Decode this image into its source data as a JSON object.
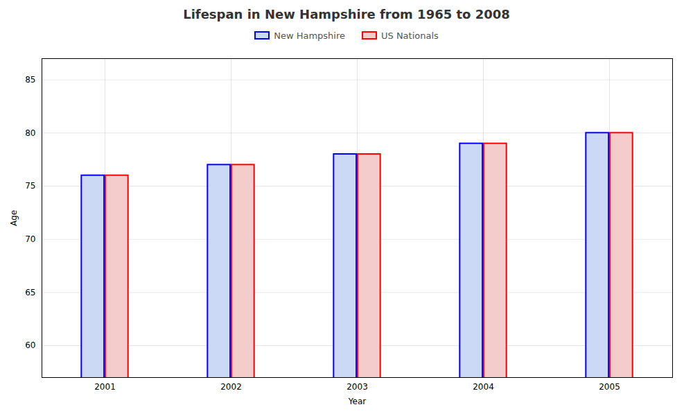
{
  "chart_data": {
    "type": "bar",
    "title": "Lifespan in New Hampshire from 1965 to 2008",
    "xlabel": "Year",
    "ylabel": "Age",
    "categories": [
      "2001",
      "2002",
      "2003",
      "2004",
      "2005"
    ],
    "series": [
      {
        "name": "New Hampshire",
        "color": "#ccd9f5",
        "values": [
          76,
          77,
          78,
          79,
          80
        ]
      },
      {
        "name": "US Nationals",
        "color": "#f5cccc",
        "values": [
          76,
          77,
          78,
          79,
          80
        ]
      }
    ],
    "ylim": [
      57,
      87
    ],
    "yticks": [
      60,
      65,
      70,
      75,
      80,
      85
    ],
    "grid": true,
    "legend": "top"
  }
}
